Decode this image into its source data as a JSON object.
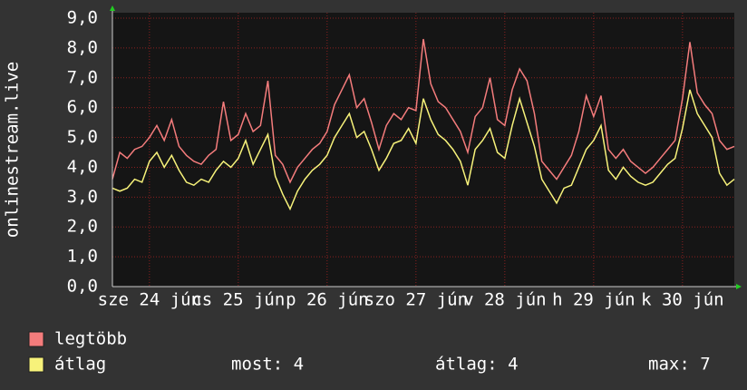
{
  "chart_data": {
    "type": "line",
    "y_label": "onlinestream.live",
    "x": [
      0,
      2,
      4,
      6,
      8,
      10,
      12,
      14,
      16,
      18,
      20,
      22,
      24,
      26,
      28,
      30,
      32,
      34,
      36,
      38,
      40,
      42,
      44,
      46,
      48,
      50,
      52,
      54,
      56,
      58,
      60,
      62,
      64,
      66,
      68,
      70,
      72,
      74,
      76,
      78,
      80,
      82,
      84,
      86,
      88,
      90,
      92,
      94,
      96,
      98,
      100,
      102,
      104,
      106,
      108,
      110,
      112,
      114,
      116,
      118,
      120,
      122,
      124,
      126,
      128,
      130,
      132,
      134,
      136,
      138,
      140,
      142,
      144,
      146,
      148,
      150,
      152,
      154,
      156,
      158,
      160,
      162,
      164,
      166,
      168
    ],
    "xlim": [
      0,
      168
    ],
    "xticks": [
      {
        "value": 10,
        "label": "sze 24 jún"
      },
      {
        "value": 34,
        "label": "cs 25 jún"
      },
      {
        "value": 58,
        "label": "p 26 jún"
      },
      {
        "value": 82,
        "label": "szo 27 jún"
      },
      {
        "value": 106,
        "label": "v 28 jún"
      },
      {
        "value": 130,
        "label": "h 29 jún"
      },
      {
        "value": 154,
        "label": "k 30 jún"
      }
    ],
    "ylim": [
      0,
      9
    ],
    "yticks": [
      {
        "value": 0,
        "label": "0,0"
      },
      {
        "value": 1,
        "label": "1,0"
      },
      {
        "value": 2,
        "label": "2,0"
      },
      {
        "value": 3,
        "label": "3,0"
      },
      {
        "value": 4,
        "label": "4,0"
      },
      {
        "value": 5,
        "label": "5,0"
      },
      {
        "value": 6,
        "label": "6,0"
      },
      {
        "value": 7,
        "label": "7,0"
      },
      {
        "value": 8,
        "label": "8,0"
      },
      {
        "value": 9,
        "label": "9,0"
      }
    ],
    "grid": true,
    "series": [
      {
        "name": "legtöbb",
        "color": "#f47c7c",
        "values": [
          3.6,
          4.5,
          4.3,
          4.6,
          4.7,
          5.0,
          5.4,
          4.9,
          5.6,
          4.7,
          4.4,
          4.2,
          4.1,
          4.4,
          4.6,
          6.2,
          4.9,
          5.1,
          5.8,
          5.2,
          5.4,
          6.9,
          4.4,
          4.1,
          3.5,
          4.0,
          4.3,
          4.6,
          4.8,
          5.2,
          6.1,
          6.6,
          7.1,
          6.0,
          6.3,
          5.5,
          4.6,
          5.4,
          5.8,
          5.6,
          6.0,
          5.9,
          8.3,
          6.8,
          6.2,
          6.0,
          5.6,
          5.2,
          4.5,
          5.7,
          6.0,
          7.0,
          5.6,
          5.4,
          6.6,
          7.3,
          6.9,
          5.8,
          4.2,
          3.9,
          3.6,
          4.0,
          4.4,
          5.2,
          6.4,
          5.7,
          6.4,
          4.6,
          4.3,
          4.6,
          4.2,
          4.0,
          3.8,
          4.0,
          4.3,
          4.6,
          4.9,
          6.3,
          8.2,
          6.5,
          6.1,
          5.8,
          4.9,
          4.6,
          4.7
        ]
      },
      {
        "name": "átlag",
        "color": "#f7f27a",
        "values": [
          3.3,
          3.2,
          3.3,
          3.6,
          3.5,
          4.2,
          4.5,
          4.0,
          4.4,
          3.9,
          3.5,
          3.4,
          3.6,
          3.5,
          3.9,
          4.2,
          4.0,
          4.3,
          4.9,
          4.1,
          4.6,
          5.1,
          3.7,
          3.1,
          2.6,
          3.2,
          3.6,
          3.9,
          4.1,
          4.4,
          5.0,
          5.4,
          5.8,
          5.0,
          5.2,
          4.6,
          3.9,
          4.3,
          4.8,
          4.9,
          5.3,
          4.8,
          6.3,
          5.6,
          5.1,
          4.9,
          4.6,
          4.2,
          3.4,
          4.6,
          4.9,
          5.3,
          4.5,
          4.3,
          5.4,
          6.3,
          5.5,
          4.7,
          3.6,
          3.2,
          2.8,
          3.3,
          3.4,
          4.0,
          4.6,
          4.9,
          5.4,
          3.9,
          3.6,
          4.0,
          3.7,
          3.5,
          3.4,
          3.5,
          3.8,
          4.1,
          4.3,
          5.3,
          6.6,
          5.8,
          5.4,
          5.0,
          3.8,
          3.4,
          3.6
        ]
      }
    ],
    "stats": [
      "most: 4",
      "átlag: 4",
      "max: 7"
    ]
  }
}
